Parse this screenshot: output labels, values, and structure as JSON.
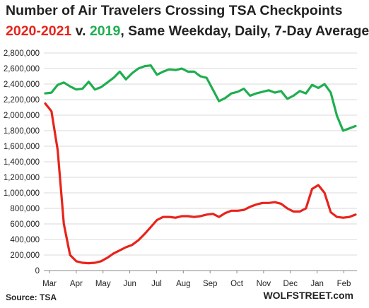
{
  "title_line1": "Number of Air Travelers Crossing TSA Checkpoints",
  "title_line2": {
    "part1": "2020-2021",
    "part2": " v. ",
    "part3": "2019",
    "part4": ", Same Weekday, Daily, 7-Day Average"
  },
  "source": "Source: TSA",
  "brand": "WOLFSTREET.com",
  "colors": {
    "current": "#e8231b",
    "prior": "#1fae4f",
    "grid": "#d9d9d9",
    "text": "#222222"
  },
  "chart_data": {
    "type": "line",
    "title": "Number of Air Travelers Crossing TSA Checkpoints",
    "subtitle": "2020-2021 v. 2019, Same Weekday, Daily, 7-Day Average",
    "xlabel": "",
    "ylabel": "",
    "ylim": [
      0,
      2800000
    ],
    "grid": true,
    "y_ticks": [
      "0",
      "200,000",
      "400,000",
      "600,000",
      "800,000",
      "1,000,000",
      "1,200,000",
      "1,400,000",
      "1,600,000",
      "1,800,000",
      "2,000,000",
      "2,200,000",
      "2,400,000",
      "2,600,000",
      "2,800,000"
    ],
    "x_ticks": [
      "Mar",
      "Apr",
      "May",
      "Jun",
      "Jul",
      "Aug",
      "Sep",
      "Oct",
      "Nov",
      "Dec",
      "Jan",
      "Feb"
    ],
    "series": [
      {
        "name": "2019, Same Weekday, 7-Day Average",
        "color": "#1fae4f",
        "x": [
          "Mar 1",
          "Mar 8",
          "Mar 15",
          "Mar 22",
          "Mar 29",
          "Apr 5",
          "Apr 12",
          "Apr 19",
          "Apr 26",
          "May 3",
          "May 10",
          "May 17",
          "May 24",
          "May 31",
          "Jun 7",
          "Jun 14",
          "Jun 21",
          "Jun 28",
          "Jul 5",
          "Jul 12",
          "Jul 19",
          "Jul 26",
          "Aug 2",
          "Aug 9",
          "Aug 16",
          "Aug 23",
          "Aug 30",
          "Sep 6",
          "Sep 13",
          "Sep 20",
          "Sep 27",
          "Oct 4",
          "Oct 11",
          "Oct 18",
          "Oct 25",
          "Nov 1",
          "Nov 8",
          "Nov 15",
          "Nov 22",
          "Nov 29",
          "Dec 6",
          "Dec 13",
          "Dec 20",
          "Dec 27",
          "Jan 3",
          "Jan 10",
          "Jan 17",
          "Jan 24",
          "Jan 31",
          "Feb 7",
          "Feb 14"
        ],
        "values": [
          2280000,
          2290000,
          2390000,
          2420000,
          2370000,
          2330000,
          2340000,
          2430000,
          2330000,
          2360000,
          2420000,
          2480000,
          2560000,
          2460000,
          2540000,
          2600000,
          2630000,
          2640000,
          2520000,
          2560000,
          2590000,
          2580000,
          2600000,
          2560000,
          2560000,
          2500000,
          2480000,
          2330000,
          2180000,
          2220000,
          2280000,
          2300000,
          2340000,
          2250000,
          2280000,
          2300000,
          2320000,
          2290000,
          2310000,
          2210000,
          2250000,
          2310000,
          2280000,
          2390000,
          2350000,
          2400000,
          2290000,
          1990000,
          1800000,
          1830000,
          1860000
        ]
      },
      {
        "name": "2020-2021, 7-Day Average",
        "color": "#e8231b",
        "x": [
          "Mar 1",
          "Mar 8",
          "Mar 15",
          "Mar 22",
          "Mar 29",
          "Apr 5",
          "Apr 12",
          "Apr 19",
          "Apr 26",
          "May 3",
          "May 10",
          "May 17",
          "May 24",
          "May 31",
          "Jun 7",
          "Jun 14",
          "Jun 21",
          "Jun 28",
          "Jul 5",
          "Jul 12",
          "Jul 19",
          "Jul 26",
          "Aug 2",
          "Aug 9",
          "Aug 16",
          "Aug 23",
          "Aug 30",
          "Sep 6",
          "Sep 13",
          "Sep 20",
          "Sep 27",
          "Oct 4",
          "Oct 11",
          "Oct 18",
          "Oct 25",
          "Nov 1",
          "Nov 8",
          "Nov 15",
          "Nov 22",
          "Nov 29",
          "Dec 6",
          "Dec 13",
          "Dec 20",
          "Dec 27",
          "Jan 3",
          "Jan 10",
          "Jan 17",
          "Jan 24",
          "Jan 31",
          "Feb 7",
          "Feb 14"
        ],
        "values": [
          2150000,
          2050000,
          1550000,
          600000,
          200000,
          120000,
          100000,
          95000,
          100000,
          120000,
          165000,
          220000,
          260000,
          300000,
          330000,
          390000,
          470000,
          560000,
          650000,
          690000,
          690000,
          680000,
          700000,
          700000,
          690000,
          700000,
          720000,
          730000,
          690000,
          740000,
          770000,
          770000,
          780000,
          820000,
          850000,
          870000,
          870000,
          880000,
          860000,
          800000,
          760000,
          760000,
          800000,
          1050000,
          1100000,
          1000000,
          750000,
          690000,
          680000,
          690000,
          720000
        ]
      }
    ]
  }
}
